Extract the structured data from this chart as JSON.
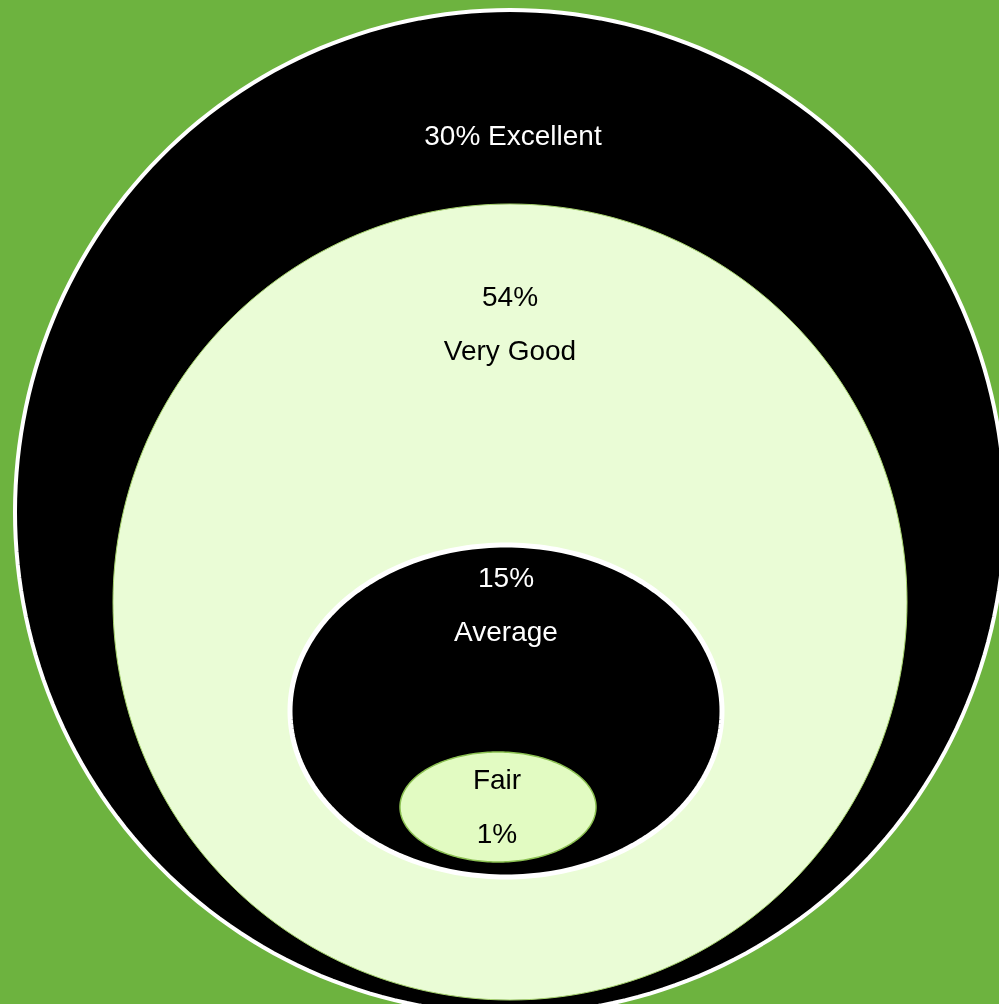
{
  "chart_data": {
    "type": "other",
    "categories": [
      "Excellent",
      "Very Good",
      "Average",
      "Fair"
    ],
    "values": [
      30,
      54,
      15,
      1
    ],
    "value_labels": [
      "30%",
      "54%",
      "15%",
      "1%"
    ],
    "colors": [
      "#000000",
      "#eafcd6",
      "#000000",
      "#e2fbc2"
    ]
  }
}
